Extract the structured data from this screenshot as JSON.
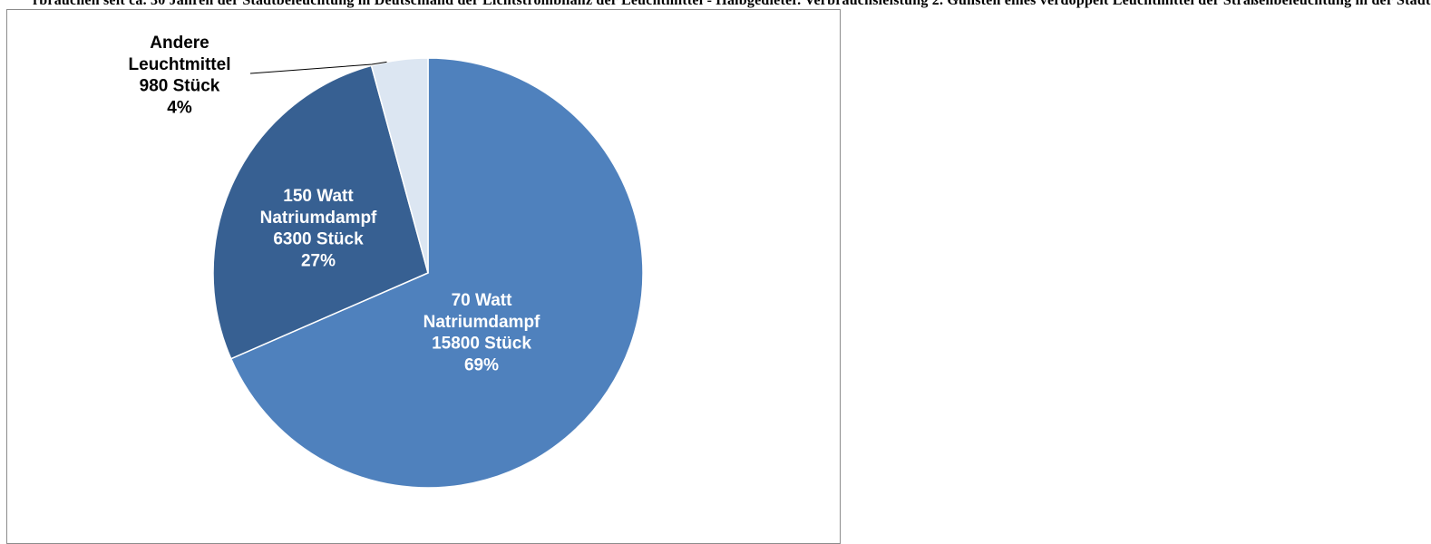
{
  "title": "rbrauchen seit ca. 30 Jahren der Stadtbeleuchtung in Deutschland der Lichtstrombilanz der Leuchtmittel - Halbgedieter. Verbrauchsleistung 2. Gunsten eines verdoppelt Leuchtmittel der Straßenbeleuchtung in der Stadt",
  "chart_data": {
    "type": "pie",
    "title": "",
    "slices": [
      {
        "label": [
          "70 Watt",
          "Natriumdampf",
          "15800 Stück",
          "69%"
        ],
        "value": 15800,
        "percent": 69,
        "color": "#4F81BD",
        "text_color": "#ffffff"
      },
      {
        "label": [
          "150 Watt",
          "Natriumdampf",
          "6300 Stück",
          "27%"
        ],
        "value": 6300,
        "percent": 27,
        "color": "#376092",
        "text_color": "#ffffff"
      },
      {
        "label": [
          "Andere",
          "Leuchtmittel",
          "980 Stück",
          "4%"
        ],
        "value": 980,
        "percent": 4,
        "color": "#DCE6F2",
        "text_color": "#000000"
      }
    ]
  }
}
